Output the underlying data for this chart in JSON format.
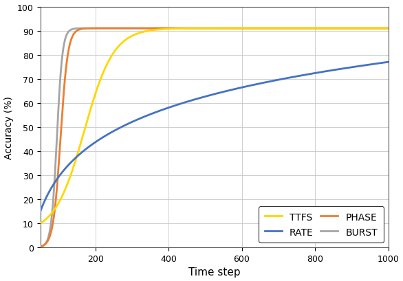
{
  "title": "",
  "xlabel": "Time step",
  "ylabel": "Accuracy (%)",
  "xlim": [
    50,
    1000
  ],
  "ylim": [
    0,
    100
  ],
  "xticks": [
    200,
    400,
    600,
    800,
    1000
  ],
  "yticks": [
    0,
    10,
    20,
    30,
    40,
    50,
    60,
    70,
    80,
    90,
    100
  ],
  "curves": {
    "TTFS": {
      "color": "#FFD700",
      "linewidth": 2.0
    },
    "RATE": {
      "color": "#4472C4",
      "linewidth": 2.0
    },
    "PHASE": {
      "color": "#ED7D31",
      "linewidth": 2.0
    },
    "BURST": {
      "color": "#A5A5A5",
      "linewidth": 2.0
    }
  },
  "legend_loc": "lower right",
  "background_color": "#FFFFFF",
  "grid_color": "#C8C8C8"
}
